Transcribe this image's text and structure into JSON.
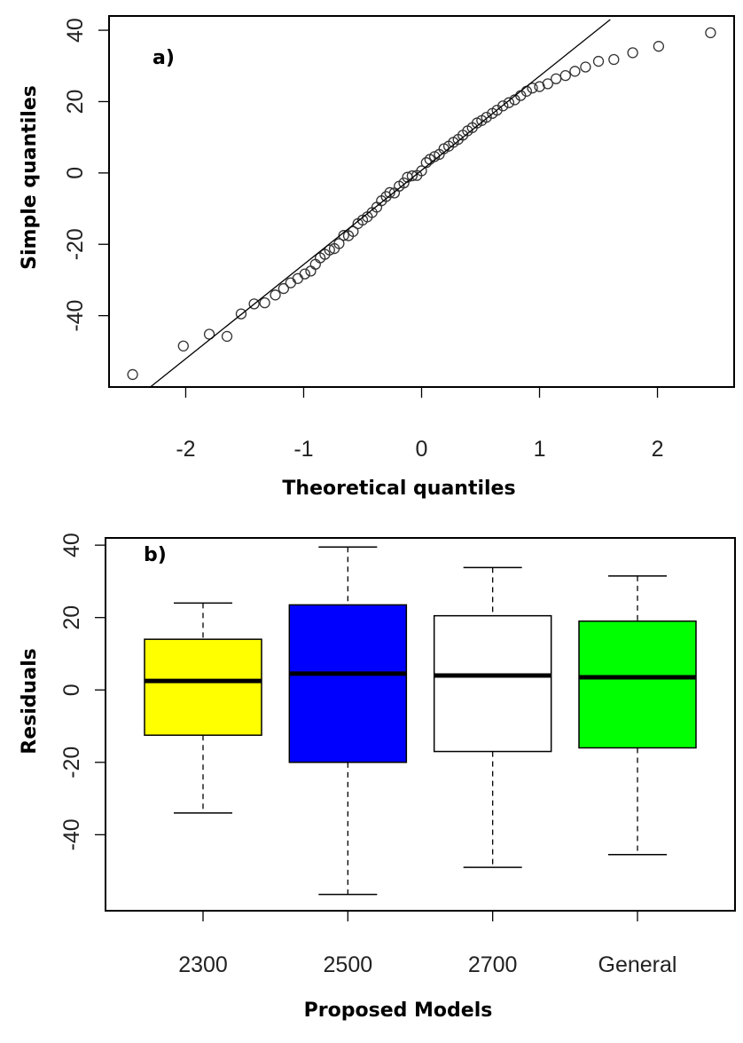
{
  "chart_data": [
    {
      "type": "scatter",
      "panel_label": "a)",
      "xlabel": "Theoretical quantiles",
      "ylabel": "Simple quantiles",
      "xlim": [
        -2.65,
        2.65
      ],
      "ylim": [
        -60,
        44
      ],
      "xticks": [
        -2,
        -1,
        0,
        1,
        2
      ],
      "yticks": [
        -40,
        -20,
        0,
        20,
        40
      ],
      "reference_line": {
        "x": [
          -2.3,
          1.6
        ],
        "y": [
          -60,
          43
        ]
      },
      "points": [
        [
          -2.45,
          -56.5
        ],
        [
          -2.02,
          -48.5
        ],
        [
          -1.8,
          -45.2
        ],
        [
          -1.65,
          -45.8
        ],
        [
          -1.53,
          -39.5
        ],
        [
          -1.42,
          -36.7
        ],
        [
          -1.33,
          -36.4
        ],
        [
          -1.24,
          -34.2
        ],
        [
          -1.17,
          -32.4
        ],
        [
          -1.11,
          -30.8
        ],
        [
          -1.05,
          -29.6
        ],
        [
          -0.99,
          -28.3
        ],
        [
          -0.94,
          -27.5
        ],
        [
          -0.9,
          -25.6
        ],
        [
          -0.86,
          -23.8
        ],
        [
          -0.82,
          -22.8
        ],
        [
          -0.78,
          -21.6
        ],
        [
          -0.74,
          -21.2
        ],
        [
          -0.7,
          -19.8
        ],
        [
          -0.66,
          -17.5
        ],
        [
          -0.62,
          -17.6
        ],
        [
          -0.58,
          -16.4
        ],
        [
          -0.54,
          -14.2
        ],
        [
          -0.5,
          -13.2
        ],
        [
          -0.46,
          -12.3
        ],
        [
          -0.42,
          -11.1
        ],
        [
          -0.38,
          -9.6
        ],
        [
          -0.34,
          -7.8
        ],
        [
          -0.3,
          -6.6
        ],
        [
          -0.27,
          -5.5
        ],
        [
          -0.23,
          -5.6
        ],
        [
          -0.19,
          -3.7
        ],
        [
          -0.15,
          -2.8
        ],
        [
          -0.12,
          -1.2
        ],
        [
          -0.08,
          -0.8
        ],
        [
          -0.04,
          -0.7
        ],
        [
          0.0,
          0.6
        ],
        [
          0.04,
          2.9
        ],
        [
          0.07,
          3.8
        ],
        [
          0.11,
          4.6
        ],
        [
          0.15,
          5.2
        ],
        [
          0.19,
          6.8
        ],
        [
          0.23,
          7.5
        ],
        [
          0.27,
          8.6
        ],
        [
          0.31,
          9.4
        ],
        [
          0.35,
          10.6
        ],
        [
          0.39,
          11.8
        ],
        [
          0.43,
          12.7
        ],
        [
          0.47,
          14.0
        ],
        [
          0.51,
          14.7
        ],
        [
          0.55,
          15.6
        ],
        [
          0.6,
          16.7
        ],
        [
          0.64,
          17.6
        ],
        [
          0.69,
          18.8
        ],
        [
          0.74,
          19.7
        ],
        [
          0.79,
          20.5
        ],
        [
          0.84,
          21.7
        ],
        [
          0.89,
          22.9
        ],
        [
          0.94,
          23.8
        ],
        [
          1.0,
          24.2
        ],
        [
          1.07,
          25.0
        ],
        [
          1.14,
          26.4
        ],
        [
          1.22,
          27.3
        ],
        [
          1.3,
          28.5
        ],
        [
          1.39,
          29.7
        ],
        [
          1.5,
          31.3
        ],
        [
          1.63,
          31.8
        ],
        [
          1.79,
          33.7
        ],
        [
          2.01,
          35.5
        ],
        [
          2.45,
          39.3
        ]
      ]
    },
    {
      "type": "box",
      "panel_label": "b)",
      "xlabel": "Proposed Models",
      "ylabel": "Residuals",
      "ylim": [
        -61,
        42
      ],
      "yticks": [
        -40,
        -20,
        0,
        20,
        40
      ],
      "categories": [
        "2300",
        "2500",
        "2700",
        "General"
      ],
      "boxes": [
        {
          "category": "2300",
          "whisker_low": -34,
          "q1": -12.5,
          "median": 2.5,
          "q3": 14,
          "whisker_high": 24,
          "color": "#ffff00"
        },
        {
          "category": "2500",
          "whisker_low": -56.5,
          "q1": -20,
          "median": 4.5,
          "q3": 23.5,
          "whisker_high": 39.5,
          "color": "#0000ff"
        },
        {
          "category": "2700",
          "whisker_low": -49,
          "q1": -17,
          "median": 4,
          "q3": 20.5,
          "whisker_high": 33.8,
          "color": "#ffffff"
        },
        {
          "category": "General",
          "whisker_low": -45.5,
          "q1": -16,
          "median": 3.5,
          "q3": 19,
          "whisker_high": 31.5,
          "color": "#00ff00"
        }
      ]
    }
  ]
}
